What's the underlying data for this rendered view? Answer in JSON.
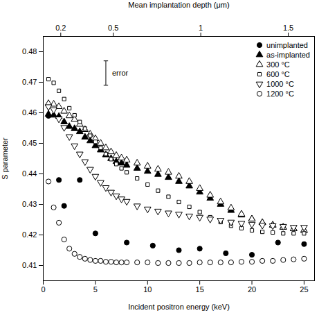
{
  "chart_data": {
    "type": "scatter",
    "xlabel": "Incident positron energy (keV)",
    "x2label": "Mean implantation depth (μm)",
    "ylabel": "S parameter",
    "xlim": [
      0,
      26
    ],
    "xticks": [
      0,
      5,
      10,
      15,
      20,
      25
    ],
    "x2lim": [
      0.1,
      1.65
    ],
    "x2ticks": [
      0.2,
      0.5,
      1,
      1.5
    ],
    "ylim": [
      0.405,
      0.485
    ],
    "yticks": [
      0.41,
      0.42,
      0.43,
      0.44,
      0.45,
      0.46,
      0.47,
      0.48
    ],
    "grid": false,
    "legend": "upper right",
    "error_bar": {
      "x": 6.0,
      "y": 0.473,
      "error": 0.004,
      "label": "error"
    },
    "series": [
      {
        "name": "unimplanted",
        "marker": "circle",
        "color": "black",
        "x": [
          0.5,
          1.5,
          2.0,
          3.5,
          5.0,
          8.0,
          10.5,
          13.0,
          15.0,
          17.5,
          20.0,
          22.5,
          25.0
        ],
        "values": [
          0.459,
          0.438,
          0.4295,
          0.438,
          0.4205,
          0.4175,
          0.4165,
          0.415,
          0.4155,
          0.414,
          0.4135,
          0.4175,
          0.417
        ]
      },
      {
        "name": "as-implanted",
        "marker": "triangle-up",
        "color": "black",
        "x": [
          0.5,
          1.0,
          1.5,
          2.0,
          2.5,
          3.0,
          3.5,
          4.0,
          4.5,
          5.0,
          5.5,
          6.0,
          6.5,
          7.0,
          7.5,
          8.0,
          9.0,
          10.0,
          11.0,
          12.0,
          13.0,
          14.0,
          15.0,
          16.0,
          17.0,
          18.0,
          19.0,
          20.0,
          21.0,
          22.0,
          23.0,
          24.0,
          25.0
        ],
        "values": [
          0.4595,
          0.4592,
          0.4588,
          0.457,
          0.4555,
          0.4548,
          0.4538,
          0.452,
          0.4508,
          0.4492,
          0.4478,
          0.4462,
          0.445,
          0.444,
          0.4435,
          0.4428,
          0.4418,
          0.4408,
          0.4398,
          0.4388,
          0.4375,
          0.436,
          0.434,
          0.432,
          0.43,
          0.428,
          0.4265,
          0.4252,
          0.424,
          0.4232,
          0.4225,
          0.422,
          0.4215
        ]
      },
      {
        "name": "300 °C",
        "marker": "triangle-up-open",
        "color": "black",
        "x": [
          0.5,
          1.0,
          1.5,
          2.0,
          2.5,
          3.0,
          3.5,
          4.0,
          4.5,
          5.0,
          5.5,
          6.0,
          6.5,
          7.0,
          7.5,
          8.0,
          9.0,
          10.0,
          11.0,
          12.0,
          13.0,
          14.0,
          15.0,
          16.0,
          17.0,
          18.0,
          19.0,
          20.0,
          21.0,
          22.0,
          23.0,
          24.0,
          25.0
        ],
        "values": [
          0.463,
          0.4628,
          0.462,
          0.4605,
          0.459,
          0.4578,
          0.4562,
          0.4545,
          0.453,
          0.4515,
          0.45,
          0.4485,
          0.4472,
          0.446,
          0.4452,
          0.4445,
          0.4435,
          0.4425,
          0.4415,
          0.4405,
          0.4392,
          0.4375,
          0.4352,
          0.433,
          0.4308,
          0.4288,
          0.4268,
          0.4252,
          0.424,
          0.4232,
          0.4225,
          0.422,
          0.4215
        ]
      },
      {
        "name": "600 °C",
        "marker": "square-open",
        "color": "black",
        "x": [
          0.5,
          1.0,
          1.5,
          2.0,
          2.5,
          3.0,
          3.5,
          4.0,
          4.5,
          5.0,
          5.5,
          6.0,
          6.5,
          7.0,
          7.5,
          8.0,
          9.0,
          10.0,
          11.0,
          12.0,
          13.0,
          14.0,
          15.0,
          16.0,
          17.0,
          18.0,
          19.0,
          20.0,
          21.0,
          22.0,
          23.0,
          24.0,
          25.0
        ],
        "values": [
          0.471,
          0.4698,
          0.4672,
          0.4645,
          0.4615,
          0.4592,
          0.457,
          0.4548,
          0.4525,
          0.4505,
          0.4485,
          0.4465,
          0.4448,
          0.4432,
          0.4418,
          0.4405,
          0.4385,
          0.4365,
          0.4345,
          0.4325,
          0.4308,
          0.4292,
          0.4275,
          0.4258,
          0.4242,
          0.423,
          0.4222,
          0.4215,
          0.421,
          0.4208,
          0.4205,
          0.4205,
          0.4205
        ]
      },
      {
        "name": "1000 °C",
        "marker": "triangle-down-open",
        "color": "black",
        "x": [
          0.5,
          1.0,
          1.5,
          2.0,
          2.5,
          3.0,
          3.5,
          4.0,
          4.5,
          5.0,
          5.5,
          6.0,
          6.5,
          7.0,
          7.5,
          8.0,
          9.0,
          10.0,
          11.0,
          12.0,
          13.0,
          14.0,
          15.0,
          16.0,
          17.0,
          18.0,
          19.0,
          20.0,
          21.0,
          22.0,
          23.0,
          24.0,
          25.0
        ],
        "values": [
          0.462,
          0.461,
          0.458,
          0.4552,
          0.4522,
          0.4492,
          0.4465,
          0.444,
          0.4415,
          0.4392,
          0.4372,
          0.4355,
          0.434,
          0.4328,
          0.4318,
          0.431,
          0.4295,
          0.4285,
          0.4278,
          0.4272,
          0.4268,
          0.4262,
          0.4258,
          0.4252,
          0.4248,
          0.4242,
          0.4238,
          0.4235,
          0.4232,
          0.423,
          0.4228,
          0.4225,
          0.4225
        ]
      },
      {
        "name": "1200 °C",
        "marker": "circle-open",
        "color": "black",
        "x": [
          0.5,
          1.0,
          1.5,
          2.0,
          2.5,
          3.0,
          3.5,
          4.0,
          4.5,
          5.0,
          5.5,
          6.0,
          6.5,
          7.0,
          7.5,
          8.0,
          9.0,
          10.0,
          11.0,
          12.0,
          13.0,
          14.0,
          15.0,
          16.0,
          17.0,
          18.0,
          19.0,
          20.0,
          21.0,
          22.0,
          23.0,
          24.0,
          25.0
        ],
        "values": [
          0.4375,
          0.429,
          0.424,
          0.4185,
          0.4155,
          0.4138,
          0.4128,
          0.4122,
          0.4118,
          0.4115,
          0.4115,
          0.4112,
          0.4112,
          0.411,
          0.411,
          0.411,
          0.411,
          0.411,
          0.4108,
          0.4108,
          0.4108,
          0.4108,
          0.411,
          0.411,
          0.411,
          0.411,
          0.4112,
          0.4112,
          0.4115,
          0.4115,
          0.4118,
          0.412,
          0.4122
        ]
      }
    ]
  }
}
